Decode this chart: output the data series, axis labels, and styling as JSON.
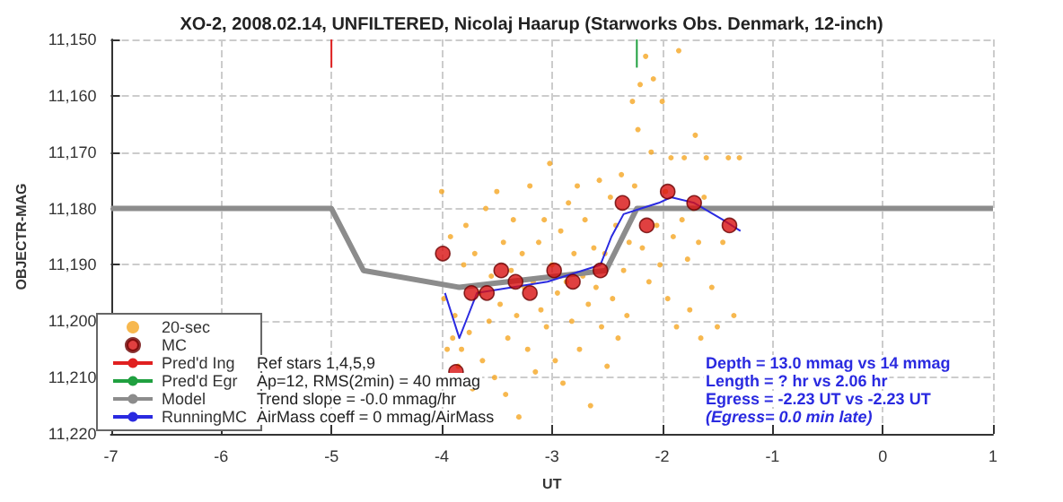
{
  "chart_data": {
    "type": "scatter",
    "title": "XO-2, 2008.02.14, UNFILTERED, Nicolaj Haarup (Starworks Obs. Denmark, 12-inch)",
    "xlabel": "UT",
    "ylabel": "OBJECTR-MAG",
    "xlim": [
      -7,
      1
    ],
    "xticks": [
      -7,
      -6,
      -5,
      -4,
      -3,
      -2,
      -1,
      0,
      1
    ],
    "ylim": [
      11220,
      11150
    ],
    "yticks": [
      {
        "value": 11150,
        "label": "11,150"
      },
      {
        "value": 11160,
        "label": "11,160"
      },
      {
        "value": 11170,
        "label": "11,170"
      },
      {
        "value": 11180,
        "label": "11,180"
      },
      {
        "value": 11190,
        "label": "11,190"
      },
      {
        "value": 11200,
        "label": "11,200"
      },
      {
        "value": 11210,
        "label": "11,210"
      },
      {
        "value": 11220,
        "label": "11,220"
      }
    ],
    "grid": true,
    "legend": "bottom left",
    "series": [
      {
        "name": "20-sec",
        "marker": "circle",
        "color": "#f5a623",
        "x": [
          -4.0,
          -3.98,
          -3.95,
          -3.92,
          -3.9,
          -3.88,
          -3.85,
          -3.82,
          -3.8,
          -3.78,
          -3.75,
          -3.72,
          -3.7,
          -3.66,
          -3.63,
          -3.6,
          -3.57,
          -3.55,
          -3.52,
          -3.5,
          -3.47,
          -3.44,
          -3.42,
          -3.4,
          -3.37,
          -3.35,
          -3.32,
          -3.3,
          -3.27,
          -3.25,
          -3.22,
          -3.2,
          -3.17,
          -3.15,
          -3.12,
          -3.1,
          -3.07,
          -3.05,
          -3.02,
          -3.0,
          -2.97,
          -2.95,
          -2.92,
          -2.9,
          -2.87,
          -2.85,
          -2.82,
          -2.8,
          -2.77,
          -2.75,
          -2.72,
          -2.7,
          -2.67,
          -2.65,
          -2.62,
          -2.6,
          -2.57,
          -2.55,
          -2.52,
          -2.5,
          -2.47,
          -2.45,
          -2.42,
          -2.4,
          -2.37,
          -2.35,
          -2.32,
          -2.3,
          -2.27,
          -2.25,
          -2.22,
          -2.2,
          -2.18,
          -2.15,
          -2.12,
          -2.1,
          -2.08,
          -2.05,
          -2.02,
          -2.0,
          -1.97,
          -1.95,
          -1.92,
          -1.9,
          -1.87,
          -1.85,
          -1.82,
          -1.8,
          -1.77,
          -1.75,
          -1.72,
          -1.7,
          -1.67,
          -1.65,
          -1.62,
          -1.6,
          -1.55,
          -1.5,
          -1.45,
          -1.4,
          -1.35,
          -1.3
        ],
        "values": [
          11177,
          11196,
          11205,
          11185,
          11203,
          11199,
          11208,
          11205,
          11190,
          11183,
          11202,
          11212,
          11188,
          11195,
          11207,
          11180,
          11200,
          11192,
          11210,
          11177,
          11197,
          11186,
          11213,
          11203,
          11191,
          11182,
          11199,
          11217,
          11188,
          11194,
          11205,
          11176,
          11193,
          11209,
          11186,
          11198,
          11182,
          11201,
          11172,
          11190,
          11207,
          11195,
          11184,
          11211,
          11193,
          11179,
          11200,
          11188,
          11176,
          11205,
          11192,
          11182,
          11197,
          11215,
          11187,
          11194,
          11175,
          11201,
          11188,
          11208,
          11178,
          11196,
          11183,
          11203,
          11174,
          11191,
          11199,
          11186,
          11161,
          11176,
          11166,
          11158,
          11187,
          11153,
          11193,
          11170,
          11157,
          11183,
          11190,
          11161,
          11177,
          11196,
          11171,
          11185,
          11201,
          11152,
          11182,
          11171,
          11189,
          11198,
          11180,
          11167,
          11186,
          11203,
          11178,
          11171,
          11194,
          11201,
          11186,
          11171,
          11199,
          11171
        ]
      },
      {
        "name": "MC",
        "marker": "circle",
        "color": "#d81010",
        "x": [
          -3.99,
          -3.87,
          -3.73,
          -3.59,
          -3.46,
          -3.33,
          -3.2,
          -2.98,
          -2.81,
          -2.56,
          -2.36,
          -2.14,
          -1.95,
          -1.71,
          -1.39
        ],
        "values": [
          11188,
          11209,
          11195,
          11195,
          11191,
          11193,
          11195,
          11191,
          11193,
          11191,
          11179,
          11183,
          11177,
          11179,
          11183
        ]
      },
      {
        "name": "Pred'd Ing",
        "type": "line",
        "marker": "none",
        "color": "#e02020",
        "x": [
          -5,
          -5
        ],
        "values": [
          11150,
          11155
        ]
      },
      {
        "name": "Pred'd Egr",
        "type": "line",
        "marker": "none",
        "color": "#20a040",
        "x": [
          -2.23,
          -2.23
        ],
        "values": [
          11150,
          11155
        ]
      },
      {
        "name": "Model",
        "type": "line",
        "marker": "none",
        "color": "#8c8c8c",
        "x": [
          -7,
          -5,
          -4.71,
          -3.84,
          -2.51,
          -2.23,
          1
        ],
        "values": [
          11180,
          11180,
          11191,
          11194,
          11191,
          11180,
          11180
        ]
      },
      {
        "name": "RunningMC",
        "type": "line",
        "marker": "none",
        "color": "#2a2ae0",
        "x": [
          -3.97,
          -3.84,
          -3.76,
          -3.68,
          -3.36,
          -3.04,
          -2.56,
          -2.46,
          -2.35,
          -2.19,
          -2.03,
          -1.92,
          -1.71,
          -1.45,
          -1.29
        ],
        "values": [
          11195,
          11203,
          11199,
          11195,
          11194,
          11193,
          11190,
          11185,
          11181,
          11180,
          11179,
          11178,
          11179,
          11182,
          11184
        ]
      }
    ],
    "annotations": [
      "Ref stars 1,4,5,9",
      "Ap=12, RMS(2min) = 40 mmag",
      "Trend slope = -0.0 mmag/hr",
      "AirMass coeff = 0 mmag/AirMass",
      "Depth = 13.0 mmag vs 14 mmag",
      "Length = ? hr vs 2.06 hr",
      "Egress = -2.23 UT vs -2.23 UT",
      "(Egress= 0.0 min late)"
    ]
  }
}
